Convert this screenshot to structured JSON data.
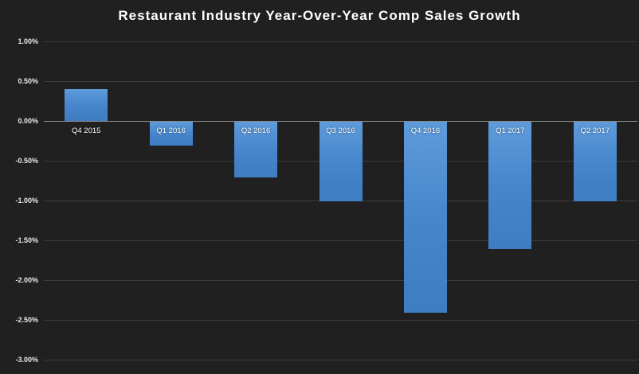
{
  "chart_data": {
    "type": "bar",
    "title": "Restaurant Industry Year-Over-Year Comp Sales Growth",
    "categories": [
      "Q4 2015",
      "Q1 2016",
      "Q2 2016",
      "Q3 2016",
      "Q4 2016",
      "Q1 2017",
      "Q2 2017"
    ],
    "values": [
      0.4,
      -0.3,
      -0.7,
      -1.0,
      -2.4,
      -1.6,
      -1.0
    ],
    "value_unit": "percent_yoy_comp_sales_growth",
    "xlabel": "",
    "ylabel": "",
    "ylim": [
      -3.0,
      1.0
    ],
    "y_ticks": [
      "1.00%",
      "0.50%",
      "0.00%",
      "-0.50%",
      "-1.00%",
      "-1.50%",
      "-2.00%",
      "-2.50%",
      "-3.00%"
    ],
    "y_tick_values": [
      1.0,
      0.5,
      0.0,
      -0.5,
      -1.0,
      -1.5,
      -2.0,
      -2.5,
      -3.0
    ],
    "grid": "horizontal-on",
    "legend": "none",
    "colors": {
      "bar": "#4a8bd4",
      "background": "#202020",
      "gridline": "#3b3b3b",
      "zero_axis_line": "#8a8a8a",
      "text": "#ffffff"
    }
  }
}
